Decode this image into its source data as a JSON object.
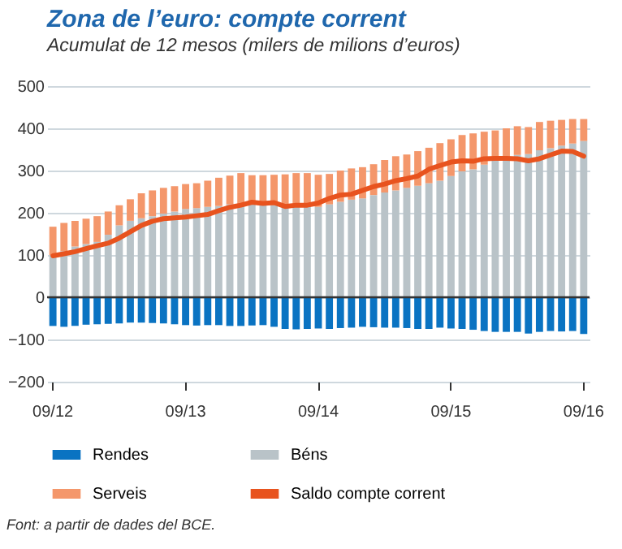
{
  "chart_data": {
    "type": "bar",
    "stacked": true,
    "title": "Zona de l’euro: compte corrent",
    "subtitle": "Acumulat de 12 mesos (milers de milions d’euros)",
    "annotations": [
      "Font: a partir de dades del BCE."
    ],
    "categories": [
      "09/12",
      null,
      null,
      null,
      null,
      null,
      null,
      null,
      null,
      null,
      null,
      null,
      "09/13",
      null,
      null,
      null,
      null,
      null,
      null,
      null,
      null,
      null,
      null,
      null,
      "09/14",
      null,
      null,
      null,
      null,
      null,
      null,
      null,
      null,
      null,
      null,
      null,
      "09/15",
      null,
      null,
      null,
      null,
      null,
      null,
      null,
      null,
      null,
      null,
      null,
      "09/16"
    ],
    "ylim": [
      -200,
      500
    ],
    "yticks": [
      -200,
      -100,
      0,
      100,
      200,
      300,
      400,
      500
    ],
    "grid": "y",
    "legend": "bottom",
    "ref_lines": [
      {
        "axis": "y",
        "value": 0,
        "color": "#333333"
      }
    ],
    "series": [
      {
        "name": "Rendes",
        "color": "#0a73c2",
        "values": [
          -68,
          -70,
          -68,
          -65,
          -64,
          -63,
          -62,
          -60,
          -60,
          -61,
          -62,
          -64,
          -66,
          -67,
          -66,
          -66,
          -68,
          -68,
          -67,
          -66,
          -70,
          -75,
          -76,
          -75,
          -74,
          -75,
          -73,
          -72,
          -70,
          -71,
          -72,
          -72,
          -73,
          -75,
          -75,
          -72,
          -74,
          -75,
          -77,
          -80,
          -82,
          -82,
          -82,
          -86,
          -82,
          -80,
          -81,
          -80,
          -87
        ]
      },
      {
        "name": "Béns",
        "color": "#b9c3c8",
        "values": [
          100,
          109,
          120,
          126,
          131,
          148,
          170,
          181,
          187,
          192,
          198,
          203,
          209,
          211,
          214,
          216,
          220,
          218,
          222,
          220,
          218,
          214,
          215,
          216,
          214,
          220,
          226,
          231,
          234,
          242,
          248,
          253,
          259,
          264,
          270,
          276,
          287,
          298,
          303,
          314,
          326,
          331,
          337,
          339,
          348,
          353,
          359,
          364,
          370
        ]
      },
      {
        "name": "Serveis",
        "color": "#f4976b",
        "values": [
          67,
          67,
          61,
          60,
          61,
          55,
          48,
          51,
          59,
          61,
          61,
          60,
          59,
          59,
          62,
          67,
          68,
          76,
          67,
          69,
          72,
          77,
          79,
          78,
          76,
          72,
          74,
          74,
          74,
          73,
          77,
          81,
          79,
          82,
          84,
          89,
          87,
          86,
          85,
          78,
          69,
          69,
          68,
          64,
          67,
          65,
          61,
          58,
          52
        ]
      },
      {
        "name": "Saldo compte corrent",
        "type": "line",
        "color": "#e8531e",
        "values": [
          98,
          103,
          108,
          115,
          122,
          128,
          140,
          155,
          170,
          180,
          186,
          188,
          190,
          193,
          196,
          205,
          213,
          218,
          225,
          222,
          224,
          215,
          218,
          218,
          223,
          234,
          242,
          244,
          253,
          262,
          268,
          276,
          281,
          287,
          303,
          312,
          320,
          323,
          322,
          328,
          329,
          329,
          328,
          323,
          328,
          337,
          346,
          345,
          334
        ]
      }
    ]
  }
}
